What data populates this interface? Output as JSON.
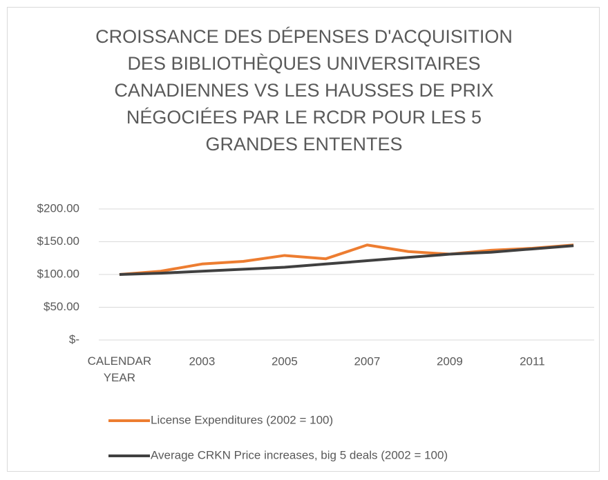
{
  "chart_data": {
    "type": "line",
    "title": "CROISSANCE DES DÉPENSES D'ACQUISITION DES BIBLIOTHÈQUES UNIVERSITAIRES CANADIENNES VS LES HAUSSES DE PRIX NÉGOCIÉES PAR LE RCDR POUR LES 5 GRANDES ENTENTES",
    "categories": [
      "CALENDAR YEAR",
      null,
      "2003",
      null,
      "2005",
      null,
      "2007",
      null,
      "2009",
      null,
      "2011",
      null
    ],
    "series": [
      {
        "name": "License Expenditures (2002 = 100)",
        "color": "#ed7d31",
        "values": [
          100,
          105,
          116,
          120,
          129,
          124,
          145,
          135,
          131,
          137,
          140,
          145
        ]
      },
      {
        "name": "Average CRKN Price increases, big 5 deals (2002 = 100)",
        "color": "#404040",
        "values": [
          100,
          102,
          105,
          108,
          111,
          116,
          121,
          126,
          131,
          134,
          139,
          144
        ]
      }
    ],
    "ylim": [
      0,
      200
    ],
    "yticks": [
      {
        "value": 0,
        "label": "$-"
      },
      {
        "value": 50,
        "label": "$50.00"
      },
      {
        "value": 100,
        "label": "$100.00"
      },
      {
        "value": 150,
        "label": "$150.00"
      },
      {
        "value": 200,
        "label": "$200.00"
      }
    ],
    "grid": true,
    "legend": "bottom"
  }
}
